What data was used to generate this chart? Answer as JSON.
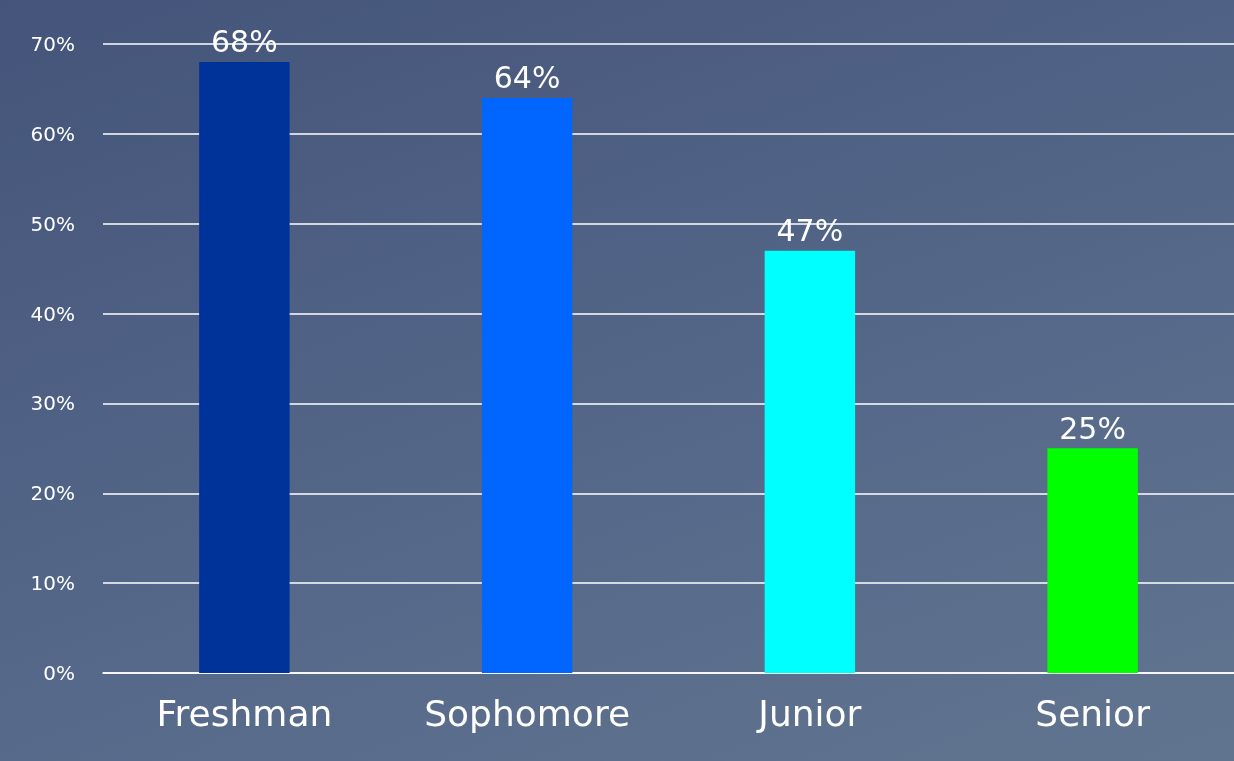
{
  "chart_data": {
    "type": "bar",
    "categories": [
      "Freshman",
      "Sophomore",
      "Junior",
      "Senior"
    ],
    "values": [
      68,
      64,
      47,
      25
    ],
    "colors": [
      "#003399",
      "#0066ff",
      "#00ffff",
      "#00ff00"
    ],
    "value_labels": [
      "68%",
      "64%",
      "47%",
      "25%"
    ],
    "ylim": [
      0,
      70
    ],
    "yticks": [
      {
        "value": 0,
        "label": "0%"
      },
      {
        "value": 10,
        "label": "10%"
      },
      {
        "value": 20,
        "label": "20%"
      },
      {
        "value": 30,
        "label": "30%"
      },
      {
        "value": 40,
        "label": "40%"
      },
      {
        "value": 50,
        "label": "50%"
      },
      {
        "value": 60,
        "label": "60%"
      },
      {
        "value": 70,
        "label": "70%"
      }
    ],
    "grid": true
  }
}
